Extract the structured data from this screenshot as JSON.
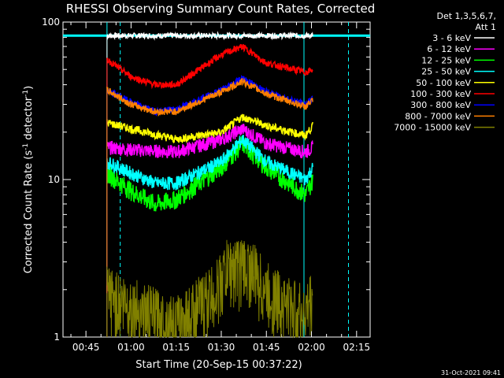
{
  "chart_data": {
    "type": "line",
    "title": "RHESSI Observing Summary Count Rates, Corrected",
    "xlabel": "Start Time (20-Sep-15 00:37:22)",
    "ylabel_main": "Corrected Count Rate (s",
    "ylabel_sup1": "-1",
    "ylabel_mid": " detector",
    "ylabel_sup2": "-1",
    "ylabel_end": ")",
    "y_scale": "log",
    "ylim": [
      1,
      100
    ],
    "y_ticks": [
      {
        "value": 1,
        "label": "1"
      },
      {
        "value": 10,
        "label": "10"
      },
      {
        "value": 100,
        "label": "100"
      }
    ],
    "xlim_minutes_after_00_00": [
      37.37,
      139.5
    ],
    "x_ticks": [
      {
        "minute": 45,
        "label": "00:45"
      },
      {
        "minute": 60,
        "label": "01:00"
      },
      {
        "minute": 75,
        "label": "01:15"
      },
      {
        "minute": 90,
        "label": "01:30"
      },
      {
        "minute": 105,
        "label": "01:45"
      },
      {
        "minute": 120,
        "label": "02:00"
      },
      {
        "minute": 135,
        "label": "02:15"
      }
    ],
    "legend": {
      "placement": "right, outside plot",
      "header_line1": "Det 1,3,5,6,7,",
      "header_line2": "Att 1"
    },
    "series": [
      {
        "name": "3 - 6 keV",
        "color": "#ffffff",
        "x": [
          52,
          60,
          75,
          90,
          97,
          105,
          118,
          120.5
        ],
        "y": [
          82,
          82,
          82,
          82,
          82,
          82,
          82,
          82
        ]
      },
      {
        "name": "6 - 12 keV",
        "color": "#ff00ff",
        "x": [
          52,
          60,
          75,
          90,
          97,
          105,
          118,
          120.5
        ],
        "y": [
          16,
          15.5,
          15,
          18,
          21,
          17,
          15,
          16
        ]
      },
      {
        "name": "12 - 25 keV",
        "color": "#00ff00",
        "x": [
          52,
          60,
          68,
          75,
          90,
          97,
          105,
          118,
          120.5
        ],
        "y": [
          11,
          8.5,
          7,
          7.5,
          12,
          17,
          12,
          8,
          10
        ]
      },
      {
        "name": "25 - 50 keV",
        "color": "#00ffff",
        "x": [
          52,
          60,
          68,
          75,
          90,
          97,
          105,
          118,
          120.5
        ],
        "y": [
          13,
          11,
          9.5,
          9.5,
          13,
          18,
          13,
          10,
          12
        ]
      },
      {
        "name": "50 - 100 keV",
        "color": "#ffff00",
        "x": [
          52,
          60,
          75,
          90,
          97,
          105,
          118,
          120.5
        ],
        "y": [
          23,
          21,
          18,
          20,
          25,
          22,
          19,
          22
        ]
      },
      {
        "name": "100 - 300 keV",
        "color": "#ff0000",
        "x": [
          52,
          60,
          68,
          75,
          90,
          97,
          105,
          118,
          120.5
        ],
        "y": [
          58,
          45,
          40,
          40,
          62,
          70,
          55,
          48,
          50
        ]
      },
      {
        "name": "300 - 800 keV",
        "color": "#0000ff",
        "x": [
          52,
          60,
          68,
          75,
          90,
          97,
          105,
          118,
          120.5
        ],
        "y": [
          37,
          31,
          27,
          28,
          37,
          44,
          36,
          30,
          33
        ]
      },
      {
        "name": "800 - 7000 keV",
        "color": "#ff8000",
        "x": [
          52,
          60,
          68,
          75,
          90,
          97,
          105,
          118,
          120.5
        ],
        "y": [
          37,
          30,
          27,
          27,
          36,
          42,
          35,
          29,
          32
        ]
      },
      {
        "name": "7000 - 15000 keV",
        "color": "#808000",
        "x": [
          52,
          60,
          75,
          88,
          92,
          97,
          100,
          105,
          118,
          120.5
        ],
        "y": [
          1.9,
          1.6,
          1.2,
          2,
          2.8,
          2.9,
          2.8,
          2,
          1.4,
          1.9
        ]
      }
    ],
    "vertical_lines": [
      {
        "minute": 52,
        "style": "solid",
        "color": "#00ffff"
      },
      {
        "minute": 56.4,
        "style": "dashed",
        "color": "#00ffff"
      },
      {
        "minute": 117.5,
        "style": "solid",
        "color": "#00ffff"
      },
      {
        "minute": 132.3,
        "style": "dashed",
        "color": "#00ffff"
      }
    ],
    "attenuator_line": {
      "color": "#00ffff",
      "y": 82
    }
  },
  "footer": {
    "date_stamp": "31-Oct-2021 09:41"
  }
}
